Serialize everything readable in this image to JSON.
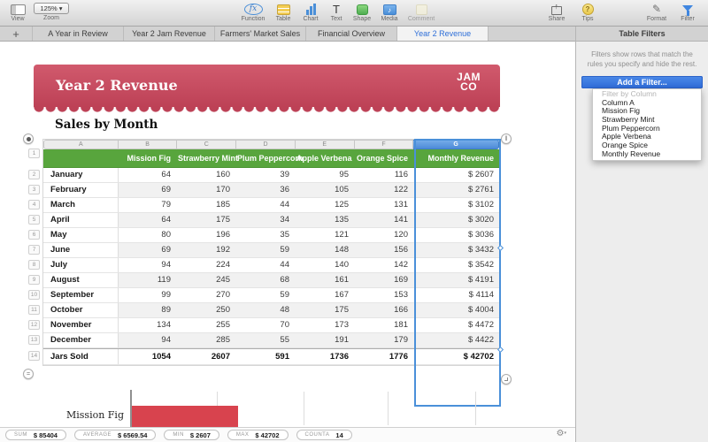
{
  "toolbar": {
    "view": {
      "label": "View"
    },
    "zoom": {
      "label": "Zoom",
      "value": "125% ▾"
    },
    "function": {
      "label": "Function",
      "glyph": "fx"
    },
    "table": {
      "label": "Table"
    },
    "chart": {
      "label": "Chart"
    },
    "text": {
      "label": "Text",
      "glyph": "T"
    },
    "shape": {
      "label": "Shape"
    },
    "media": {
      "label": "Media",
      "glyph": "♪"
    },
    "comment": {
      "label": "Comment"
    },
    "share": {
      "label": "Share",
      "glyph": "↑"
    },
    "tips": {
      "label": "Tips",
      "glyph": "?"
    },
    "format": {
      "label": "Format",
      "glyph": "✎"
    },
    "filter": {
      "label": "Filter"
    }
  },
  "tabs": {
    "add_label": "+",
    "items": [
      {
        "label": "A Year in Review",
        "selected": false
      },
      {
        "label": "Year 2 Jam Revenue",
        "selected": false
      },
      {
        "label": "Farmers' Market Sales",
        "selected": false
      },
      {
        "label": "Financial Overview",
        "selected": false
      },
      {
        "label": "Year 2 Revenue",
        "selected": true
      }
    ]
  },
  "banner": {
    "title": "Year 2 Revenue",
    "logo_line1": "JAM",
    "logo_line2": "CO"
  },
  "sheet": {
    "heading": "Sales by Month"
  },
  "table": {
    "column_letters": [
      "A",
      "B",
      "C",
      "D",
      "E",
      "F",
      "G"
    ],
    "selected_column": "G",
    "header": [
      "",
      "Mission Fig",
      "Strawberry Mint",
      "Plum Peppercorn",
      "Apple Verbena",
      "Orange Spice",
      "Monthly Revenue"
    ],
    "rows": [
      {
        "n": "2",
        "label": "January",
        "values": [
          "64",
          "160",
          "39",
          "95",
          "116",
          "$ 2607"
        ]
      },
      {
        "n": "3",
        "label": "February",
        "values": [
          "69",
          "170",
          "36",
          "105",
          "122",
          "$ 2761"
        ]
      },
      {
        "n": "4",
        "label": "March",
        "values": [
          "79",
          "185",
          "44",
          "125",
          "131",
          "$ 3102"
        ]
      },
      {
        "n": "5",
        "label": "April",
        "values": [
          "64",
          "175",
          "34",
          "135",
          "141",
          "$ 3020"
        ]
      },
      {
        "n": "6",
        "label": "May",
        "values": [
          "80",
          "196",
          "35",
          "121",
          "120",
          "$ 3036"
        ]
      },
      {
        "n": "7",
        "label": "June",
        "values": [
          "69",
          "192",
          "59",
          "148",
          "156",
          "$ 3432"
        ]
      },
      {
        "n": "8",
        "label": "July",
        "values": [
          "94",
          "224",
          "44",
          "140",
          "142",
          "$ 3542"
        ]
      },
      {
        "n": "9",
        "label": "August",
        "values": [
          "119",
          "245",
          "68",
          "161",
          "169",
          "$ 4191"
        ]
      },
      {
        "n": "10",
        "label": "September",
        "values": [
          "99",
          "270",
          "59",
          "167",
          "153",
          "$ 4114"
        ]
      },
      {
        "n": "11",
        "label": "October",
        "values": [
          "89",
          "250",
          "48",
          "175",
          "166",
          "$ 4004"
        ]
      },
      {
        "n": "12",
        "label": "November",
        "values": [
          "134",
          "255",
          "70",
          "173",
          "181",
          "$ 4472"
        ]
      },
      {
        "n": "13",
        "label": "December",
        "values": [
          "94",
          "285",
          "55",
          "191",
          "179",
          "$ 4422"
        ]
      },
      {
        "n": "14",
        "label": "Jars Sold",
        "values": [
          "1054",
          "2607",
          "591",
          "1736",
          "1776",
          "$ 42702"
        ],
        "footer": true
      }
    ]
  },
  "chart_data": {
    "type": "bar",
    "orientation": "horizontal",
    "categories": [
      "Mission Fig"
    ],
    "series": [
      {
        "name": "Jars Sold",
        "values": [
          1054
        ]
      }
    ],
    "note": "chart partially visible at bottom of canvas, axis unlabeled"
  },
  "filters_panel": {
    "title": "Table Filters",
    "description": "Filters show rows that match the rules you specify and hide the rest.",
    "add_button": "Add a Filter...",
    "menu_header": "Filter by Column",
    "menu_items": [
      "Column A",
      "Mission Fig",
      "Strawberry Mint",
      "Plum Peppercorn",
      "Apple Verbena",
      "Orange Spice",
      "Monthly Revenue"
    ]
  },
  "status_bar": {
    "stats": [
      {
        "label": "SUM",
        "value": "$ 85404"
      },
      {
        "label": "AVERAGE",
        "value": "$ 6569.54"
      },
      {
        "label": "MIN",
        "value": "$ 2607"
      },
      {
        "label": "MAX",
        "value": "$ 42702"
      },
      {
        "label": "COUNTA",
        "value": "14"
      }
    ]
  },
  "colors": {
    "accent_blue": "#3b77d8",
    "header_green": "#58a53d",
    "banner_pink": "#c64f63",
    "bar_red": "#d8434e"
  }
}
